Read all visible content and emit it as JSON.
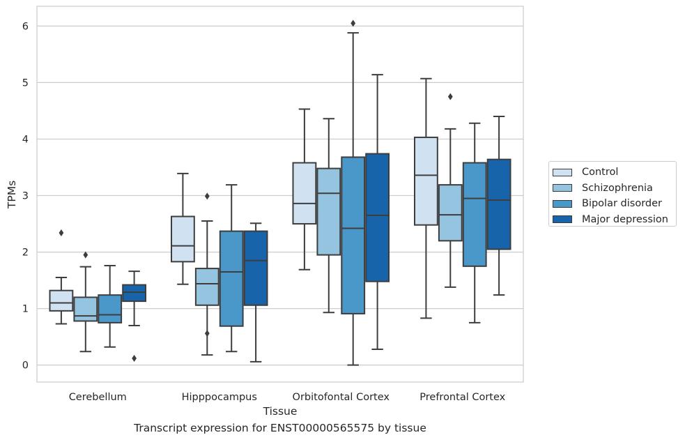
{
  "chart_data": {
    "type": "box",
    "xlabel": "Tissue",
    "ylabel": "TPMs",
    "caption": "Transcript expression for ENST00000565575 by tissue",
    "ylim": [
      -0.3,
      6.35
    ],
    "yticks": [
      0,
      1,
      2,
      3,
      4,
      5,
      6
    ],
    "grid": "horizontal",
    "legend_position": "right",
    "categories": [
      "Cerebellum",
      "Hipppocampus",
      "Orbitofontal Cortex",
      "Prefrontal Cortex"
    ],
    "series": [
      {
        "name": "Control",
        "color": "#d0e1f2",
        "boxes": [
          {
            "whislo": 0.73,
            "q1": 0.96,
            "med": 1.1,
            "q3": 1.32,
            "whishi": 1.55,
            "fliers": [
              2.34
            ]
          },
          {
            "whislo": 1.43,
            "q1": 1.83,
            "med": 2.11,
            "q3": 2.63,
            "whishi": 3.39,
            "fliers": []
          },
          {
            "whislo": 1.69,
            "q1": 2.5,
            "med": 2.86,
            "q3": 3.58,
            "whishi": 4.53,
            "fliers": []
          },
          {
            "whislo": 0.83,
            "q1": 2.48,
            "med": 3.36,
            "q3": 4.03,
            "whishi": 5.07,
            "fliers": []
          }
        ]
      },
      {
        "name": "Schizophrenia",
        "color": "#94c4df",
        "boxes": [
          {
            "whislo": 0.24,
            "q1": 0.78,
            "med": 0.87,
            "q3": 1.2,
            "whishi": 1.74,
            "fliers": [
              1.95
            ]
          },
          {
            "whislo": 0.18,
            "q1": 1.06,
            "med": 1.44,
            "q3": 1.71,
            "whishi": 2.55,
            "fliers": [
              0.56,
              2.99
            ]
          },
          {
            "whislo": 0.93,
            "q1": 1.95,
            "med": 3.04,
            "q3": 3.48,
            "whishi": 4.36,
            "fliers": []
          },
          {
            "whislo": 1.38,
            "q1": 2.2,
            "med": 2.66,
            "q3": 3.19,
            "whishi": 4.18,
            "fliers": [
              4.75
            ]
          }
        ]
      },
      {
        "name": "Bipolar disorder",
        "color": "#4a98c9",
        "boxes": [
          {
            "whislo": 0.32,
            "q1": 0.75,
            "med": 0.89,
            "q3": 1.24,
            "whishi": 1.76,
            "fliers": []
          },
          {
            "whislo": 0.24,
            "q1": 0.69,
            "med": 1.65,
            "q3": 2.37,
            "whishi": 3.19,
            "fliers": []
          },
          {
            "whislo": 0.0,
            "q1": 0.91,
            "med": 2.42,
            "q3": 3.68,
            "whishi": 5.88,
            "fliers": [
              6.05
            ]
          },
          {
            "whislo": 0.75,
            "q1": 1.75,
            "med": 2.95,
            "q3": 3.58,
            "whishi": 4.28,
            "fliers": []
          }
        ]
      },
      {
        "name": "Major depression",
        "color": "#1764ab",
        "boxes": [
          {
            "whislo": 0.7,
            "q1": 1.13,
            "med": 1.29,
            "q3": 1.42,
            "whishi": 1.66,
            "fliers": [
              0.12
            ]
          },
          {
            "whislo": 0.06,
            "q1": 1.06,
            "med": 1.85,
            "q3": 2.37,
            "whishi": 2.51,
            "fliers": []
          },
          {
            "whislo": 0.28,
            "q1": 1.48,
            "med": 2.65,
            "q3": 3.74,
            "whishi": 5.14,
            "fliers": []
          },
          {
            "whislo": 1.24,
            "q1": 2.05,
            "med": 2.92,
            "q3": 3.64,
            "whishi": 4.4,
            "fliers": []
          }
        ]
      }
    ]
  }
}
